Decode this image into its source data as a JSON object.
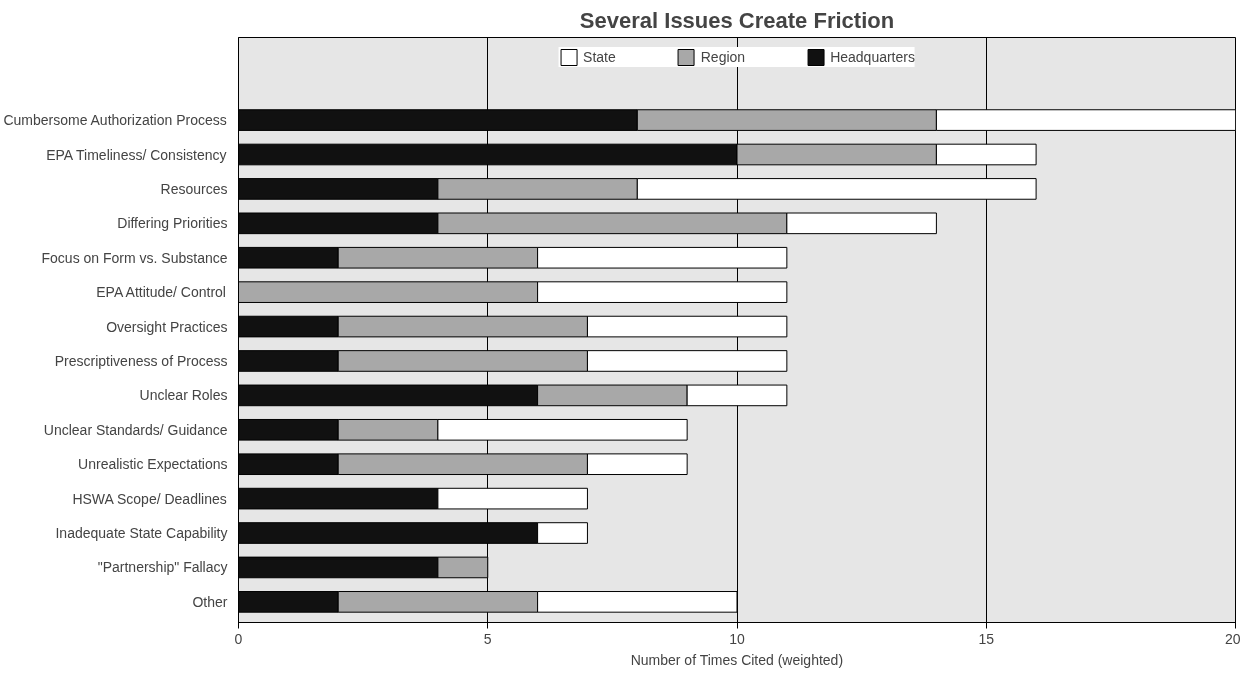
{
  "chart_data": {
    "type": "bar",
    "orientation": "horizontal",
    "stacked": true,
    "title": "Several Issues Create Friction",
    "xlabel": "Number of Times Cited (weighted)",
    "categories": [
      "Cumbersome Authorization Process",
      "EPA Timeliness/ Consistency",
      "Resources",
      "Differing Priorities",
      "Focus on Form vs. Substance",
      "EPA Attitude/ Control",
      "Oversight Practices",
      "Prescriptiveness of Process",
      "Unclear Roles",
      "Unclear Standards/ Guidance",
      "Unrealistic Expectations",
      "HSWA Scope/ Deadlines",
      "Inadequate State Capability",
      "\"Partnership\" Fallacy",
      "Other"
    ],
    "series": [
      {
        "name": "Headquarters",
        "color": "#111111",
        "values": [
          8,
          10,
          4,
          4,
          2,
          0,
          2,
          2,
          6,
          2,
          2,
          4,
          6,
          4,
          2
        ]
      },
      {
        "name": "Region",
        "color": "#a8a8a8",
        "values": [
          6,
          4,
          4,
          7,
          4,
          6,
          5,
          5,
          3,
          2,
          5,
          0,
          0,
          1,
          4
        ]
      },
      {
        "name": "State",
        "color": "#ffffff",
        "values": [
          6,
          2,
          8,
          3,
          5,
          5,
          4,
          4,
          2,
          5,
          2,
          3,
          1,
          0,
          4
        ]
      }
    ],
    "xlim": [
      0,
      20
    ],
    "xticks": [
      0,
      5,
      10,
      15,
      20
    ],
    "grid": "x",
    "legend": "top"
  }
}
